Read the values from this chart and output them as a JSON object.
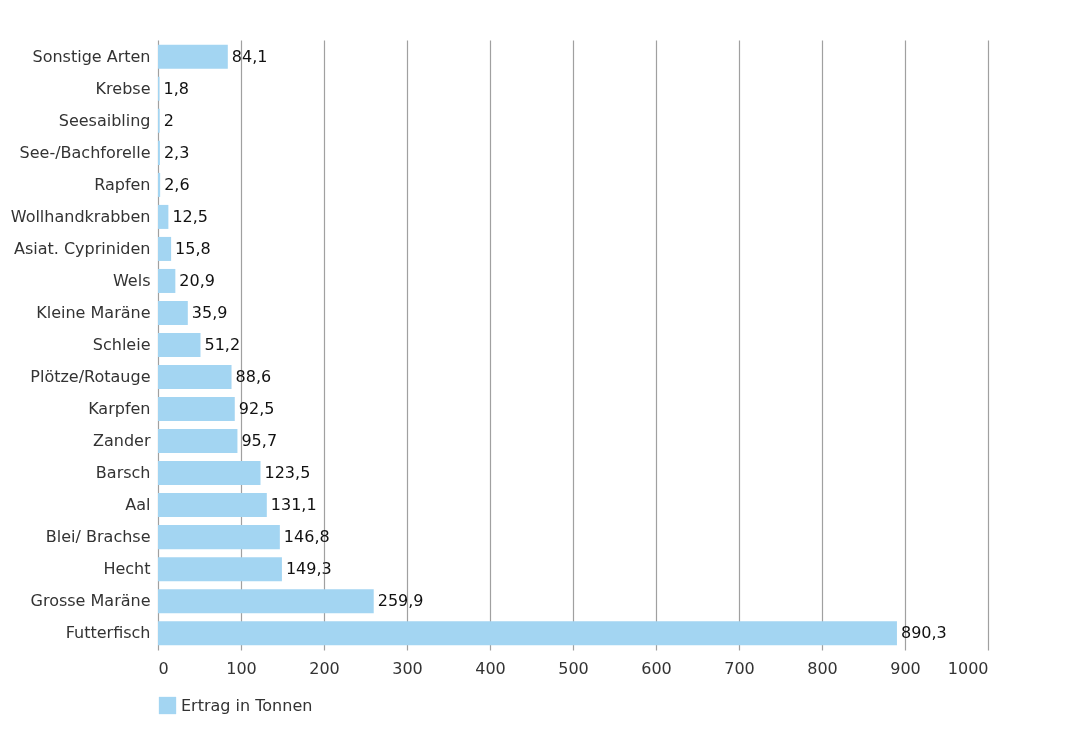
{
  "chart_data": {
    "type": "bar",
    "orientation": "horizontal",
    "categories": [
      "Sonstige Arten",
      "Krebse",
      "Seesaibling",
      "See-/Bachforelle",
      "Rapfen",
      "Wollhandkrabben",
      "Asiat. Cypriniden",
      "Wels",
      "Kleine Maräne",
      "Schleie",
      "Plötze/Rotauge",
      "Karpfen",
      "Zander",
      "Barsch",
      "Aal",
      "Blei/ Brachse",
      "Hecht",
      "Grosse Maräne",
      "Futterfisch"
    ],
    "series": [
      {
        "name": "Ertrag in Tonnen",
        "color": "#a3d5f2",
        "values": [
          84.1,
          1.8,
          2,
          2.3,
          2.6,
          12.5,
          15.8,
          20.9,
          35.9,
          51.2,
          88.6,
          92.5,
          95.7,
          123.5,
          131.1,
          146.8,
          149.3,
          259.9,
          890.3
        ]
      }
    ],
    "value_labels": [
      "84,1",
      "1,8",
      "2",
      "2,3",
      "2,6",
      "12,5",
      "15,8",
      "20,9",
      "35,9",
      "51,2",
      "88,6",
      "92,5",
      "95,7",
      "123,5",
      "131,1",
      "146,8",
      "149,3",
      "259,9",
      "890,3"
    ],
    "xlim": [
      0,
      1000
    ],
    "xticks": [
      0,
      100,
      200,
      300,
      400,
      500,
      600,
      700,
      800,
      900,
      1000
    ],
    "grid": "x",
    "legend": "bottom left"
  }
}
